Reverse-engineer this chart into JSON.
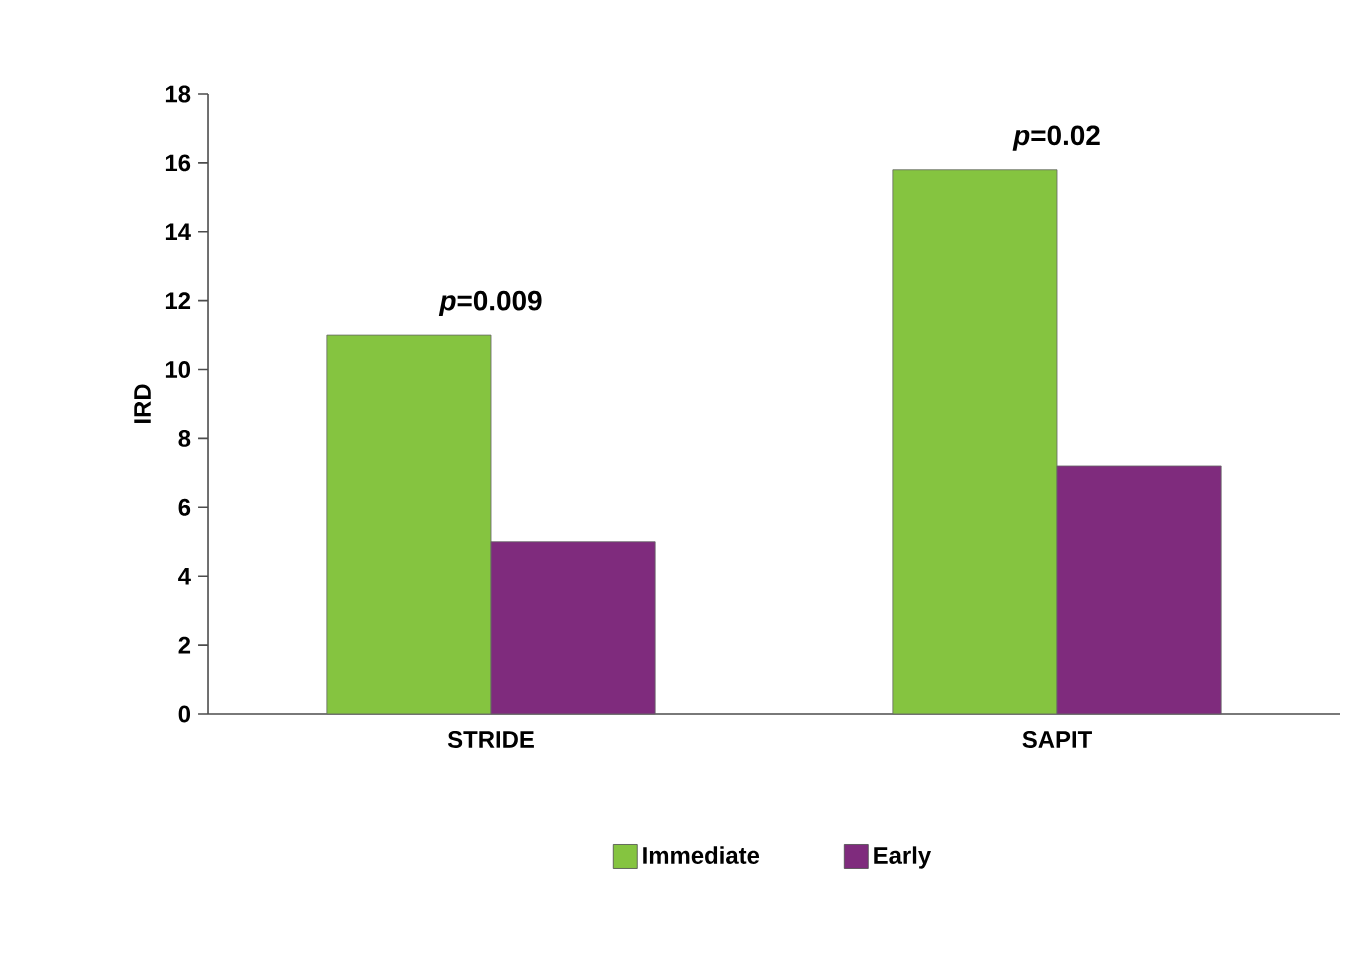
{
  "chart_data": {
    "type": "bar",
    "ylabel": "IRD",
    "categories": [
      "STRIDE",
      "SAPIT"
    ],
    "series": [
      {
        "name": "Immediate",
        "color": "#85c440",
        "values": [
          11.0,
          15.8
        ]
      },
      {
        "name": "Early",
        "color": "#7f2b7d",
        "values": [
          5.0,
          7.2
        ]
      }
    ],
    "ylim": [
      0,
      18
    ],
    "yticks": [
      0,
      2,
      4,
      6,
      8,
      10,
      12,
      14,
      16,
      18
    ],
    "legend": "bottom",
    "annotations": [
      {
        "text": "*p*=0.009",
        "x": "STRIDE",
        "y": 11.0
      },
      {
        "text": "*p*=0.02",
        "x": "SAPIT",
        "y": 15.8
      }
    ]
  }
}
